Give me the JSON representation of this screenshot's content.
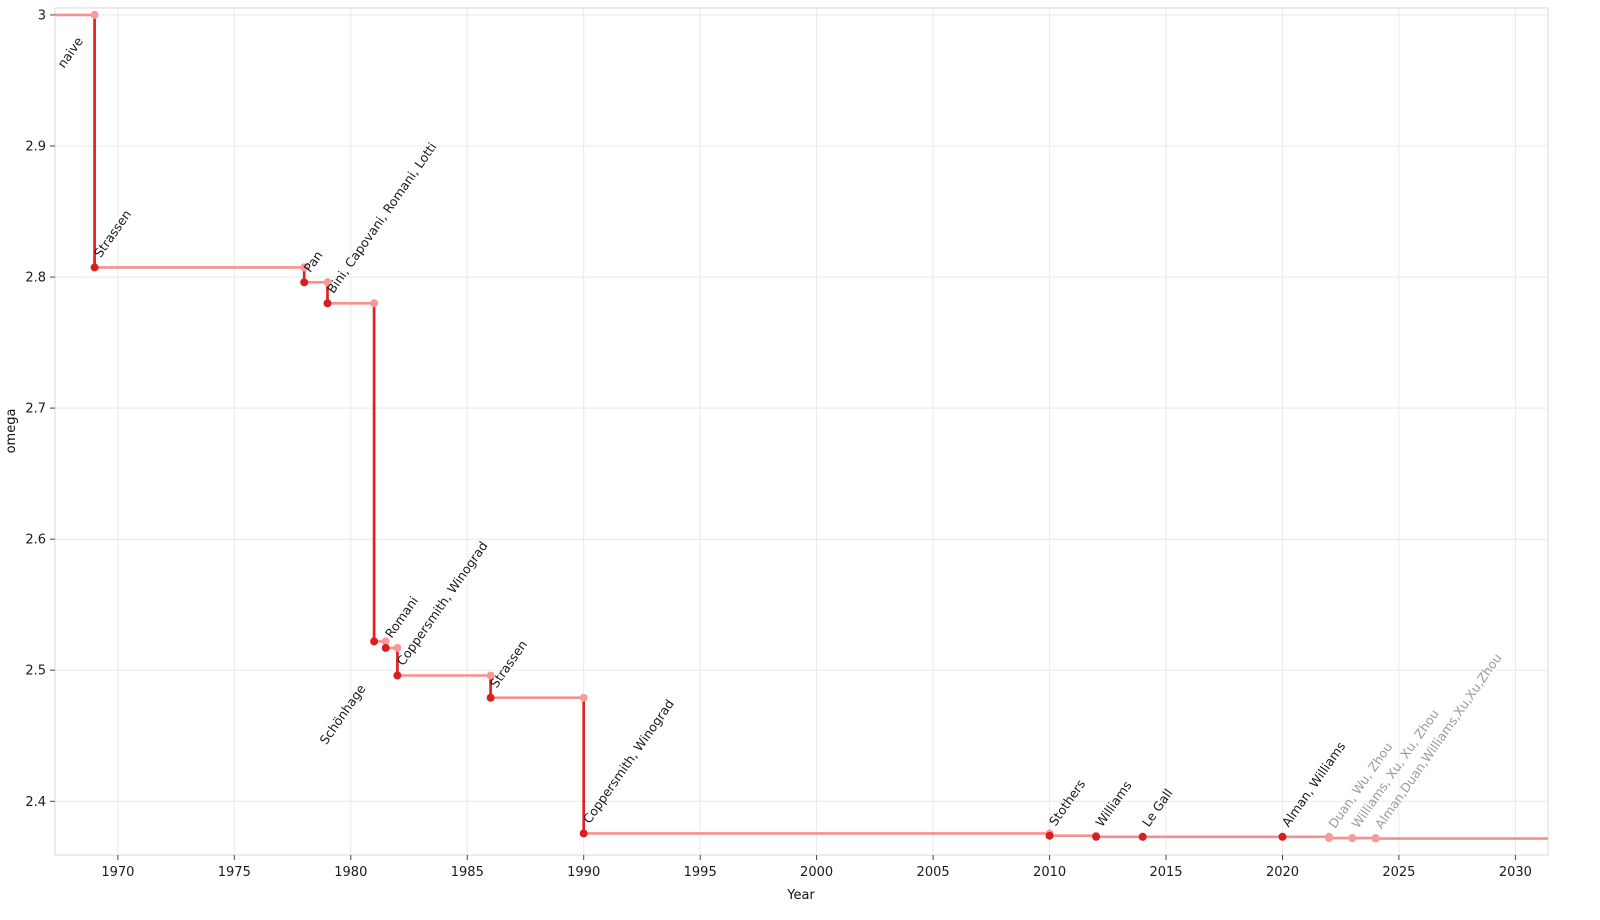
{
  "chart_data": {
    "type": "step-line",
    "title": "",
    "xlabel": "Year",
    "ylabel": "omega",
    "grid": true,
    "legend_position": "none",
    "x_axis": {
      "label": "Year",
      "range": [
        1967.3,
        2031.4
      ],
      "ticks": [
        {
          "v": 1970,
          "t": "1970"
        },
        {
          "v": 1975,
          "t": "1975"
        },
        {
          "v": 1980,
          "t": "1980"
        },
        {
          "v": 1985,
          "t": "1985"
        },
        {
          "v": 1990,
          "t": "1990"
        },
        {
          "v": 1995,
          "t": "1995"
        },
        {
          "v": 2000,
          "t": "2000"
        },
        {
          "v": 2005,
          "t": "2005"
        },
        {
          "v": 2010,
          "t": "2010"
        },
        {
          "v": 2015,
          "t": "2015"
        },
        {
          "v": 2020,
          "t": "2020"
        },
        {
          "v": 2025,
          "t": "2025"
        },
        {
          "v": 2030,
          "t": "2030"
        }
      ]
    },
    "y_axis": {
      "label": "omega",
      "range": [
        2.359,
        3.0053
      ],
      "ticks": [
        {
          "v": 2.4,
          "t": "2.4"
        },
        {
          "v": 2.5,
          "t": "2.5"
        },
        {
          "v": 2.6,
          "t": "2.6"
        },
        {
          "v": 2.7,
          "t": "2.7"
        },
        {
          "v": 2.8,
          "t": "2.8"
        },
        {
          "v": 2.9,
          "t": "2.9"
        },
        {
          "v": 3.0,
          "t": "3"
        }
      ]
    },
    "start": {
      "omega": 3.0,
      "label": "naive"
    },
    "events": [
      {
        "year": 1969,
        "omega": 2.8074,
        "label": "Strassen"
      },
      {
        "year": 1978,
        "omega": 2.796,
        "label": "Pan"
      },
      {
        "year": 1979,
        "omega": 2.78,
        "label": "Bini, Capovani, Romani, Lotti"
      },
      {
        "year": 1981,
        "omega": 2.522,
        "label": "Schönhage",
        "label_below": true
      },
      {
        "year": 1981.5,
        "omega": 2.517,
        "label": "Romani"
      },
      {
        "year": 1982,
        "omega": 2.496,
        "label": "Coppersmith, Winograd"
      },
      {
        "year": 1986,
        "omega": 2.479,
        "label": "Strassen"
      },
      {
        "year": 1990,
        "omega": 2.3755,
        "label": "Coppersmith, Winograd"
      },
      {
        "year": 2010,
        "omega": 2.3737,
        "label": "Stothers"
      },
      {
        "year": 2012,
        "omega": 2.3729,
        "label": "Williams"
      },
      {
        "year": 2014,
        "omega": 2.37287,
        "label": "Le Gall"
      },
      {
        "year": 2020,
        "omega": 2.37286,
        "label": "Alman, Williams"
      },
      {
        "year": 2022,
        "omega": 2.37188,
        "label": "Duan, Wu, Zhou",
        "gray": true
      },
      {
        "year": 2023,
        "omega": 2.371866,
        "label": "Williams, Xu, Xu, Zhou",
        "gray": true
      },
      {
        "year": 2024,
        "omega": 2.371552,
        "label": "Alman,Duan,Williams,Xu,Xu,Zhou",
        "gray": true
      }
    ],
    "colors": {
      "line": "#f78f8f",
      "drop": "#e22020",
      "point_dark": "#d81f1f",
      "point_light": "#f79a9a",
      "label_dark": "#1a1a1a",
      "label_gray": "#9b9b9b",
      "grid": "#e9e9e9",
      "frame": "#d9d9d9",
      "tick_text": "#1c1c1c"
    }
  }
}
